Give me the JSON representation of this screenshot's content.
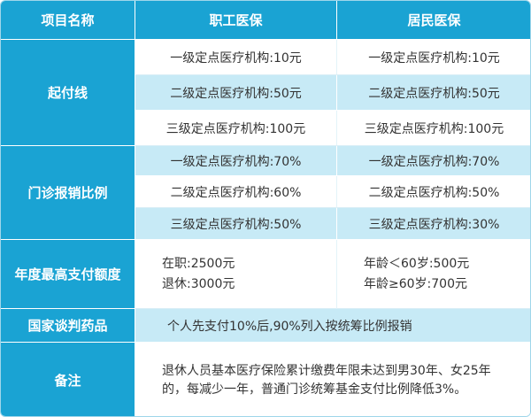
{
  "header": {
    "item": "项目名称",
    "employee": "职工医保",
    "resident": "居民医保"
  },
  "rows": {
    "deductible": {
      "label": "起付线",
      "employee": [
        "一级定点医疗机构:10元",
        "二级定点医疗机构:50元",
        "三级定点医疗机构:100元"
      ],
      "resident": [
        "一级定点医疗机构:10元",
        "二级定点医疗机构:50元",
        "三级定点医疗机构:100元"
      ]
    },
    "outpatient": {
      "label": "门诊报销比例",
      "employee": [
        "一级定点医疗机构:70%",
        "二级定点医疗机构:60%",
        "三级定点医疗机构:50%"
      ],
      "resident": [
        "一级定点医疗机构:70%",
        "二级定点医疗机构:50%",
        "三级定点医疗机构:30%"
      ]
    },
    "annual_max": {
      "label": "年度最高支付额度",
      "employee": [
        "在职:2500元",
        "退休:3000元"
      ],
      "resident": [
        "年龄＜60岁:500元",
        "年龄≥60岁:700元"
      ]
    },
    "negotiated_drugs": {
      "label": "国家谈判药品",
      "text": "个人先支付10%后,90%列入按统筹比例报销"
    },
    "remarks": {
      "label": "备注",
      "text": "退休人员基本医疗保险累计缴费年限未达到男30年、女25年的，每减少一年，普通门诊统筹基金支付比例降低3%。"
    }
  },
  "colors": {
    "header_blue": "#1aa3d3",
    "shade_blue": "#c7eaf6",
    "border": "#9fd6ea"
  }
}
